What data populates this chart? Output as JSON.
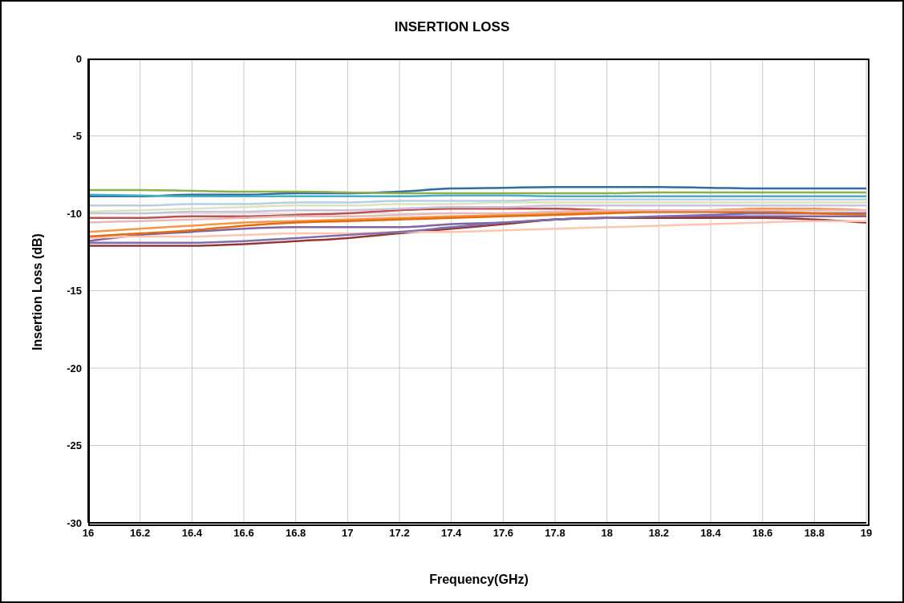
{
  "chart_data": {
    "type": "line",
    "title": "INSERTION LOSS",
    "xlabel": "Frequency(GHz)",
    "ylabel": "Insertion Loss (dB)",
    "x": [
      16,
      16.2,
      16.4,
      16.6,
      16.8,
      17,
      17.2,
      17.4,
      17.6,
      17.8,
      18,
      18.2,
      18.4,
      18.6,
      18.8,
      19
    ],
    "xlim": [
      16,
      19
    ],
    "xticks": [
      16,
      16.2,
      16.4,
      16.6,
      16.8,
      17,
      17.2,
      17.4,
      17.6,
      17.8,
      18,
      18.2,
      18.4,
      18.6,
      18.8,
      19
    ],
    "ylim": [
      -30,
      0
    ],
    "yticks": [
      -30,
      -25,
      -20,
      -15,
      -10,
      -5,
      0
    ],
    "grid": true,
    "marker": "none",
    "line_style": "solid",
    "series": [
      {
        "color": "#2e6ca4",
        "values": [
          -8.9,
          -8.9,
          -8.8,
          -8.8,
          -8.7,
          -8.7,
          -8.6,
          -8.4,
          -8.35,
          -8.3,
          -8.3,
          -8.3,
          -8.35,
          -8.4,
          -8.4,
          -8.4
        ]
      },
      {
        "color": "#8db04a",
        "values": [
          -8.5,
          -8.5,
          -8.55,
          -8.6,
          -8.6,
          -8.65,
          -8.7,
          -8.7,
          -8.7,
          -8.7,
          -8.7,
          -8.65,
          -8.65,
          -8.65,
          -8.65,
          -8.65
        ]
      },
      {
        "color": "#4bacc6",
        "values": [
          -8.8,
          -8.85,
          -8.9,
          -8.9,
          -8.9,
          -8.9,
          -8.9,
          -8.85,
          -8.85,
          -8.9,
          -8.9,
          -8.9,
          -8.9,
          -8.9,
          -8.9,
          -8.9
        ]
      },
      {
        "color": "#b9cde5",
        "values": [
          -9.5,
          -9.5,
          -9.4,
          -9.4,
          -9.3,
          -9.3,
          -9.2,
          -9.2,
          -9.2,
          -9.1,
          -9.1,
          -9.1,
          -9.1,
          -9.1,
          -9.1,
          -9.1
        ]
      },
      {
        "color": "#c0504d",
        "values": [
          -10.3,
          -10.3,
          -10.2,
          -10.2,
          -10.1,
          -10,
          -9.8,
          -9.7,
          -9.7,
          -9.7,
          -9.8,
          -9.9,
          -9.9,
          -10,
          -10,
          -10
        ]
      },
      {
        "color": "#f79646",
        "values": [
          -11.2,
          -11,
          -10.8,
          -10.6,
          -10.5,
          -10.4,
          -10.3,
          -10.2,
          -10.1,
          -10,
          -9.9,
          -9.9,
          -9.8,
          -9.7,
          -9.7,
          -9.8
        ]
      },
      {
        "color": "#8064a2",
        "values": [
          -11.8,
          -11.4,
          -11.2,
          -11,
          -10.9,
          -10.9,
          -10.9,
          -10.7,
          -10.6,
          -10.4,
          -10.3,
          -10.3,
          -10.2,
          -10.2,
          -10.2,
          -10.2
        ]
      },
      {
        "color": "#953735",
        "values": [
          -12.1,
          -12.1,
          -12.1,
          -12,
          -11.8,
          -11.6,
          -11.3,
          -11,
          -10.7,
          -10.4,
          -10.3,
          -10.3,
          -10.3,
          -10.3,
          -10.4,
          -10.6
        ]
      },
      {
        "color": "#fbc5b0",
        "values": [
          -11.6,
          -11.5,
          -11.5,
          -11.4,
          -11.3,
          -11.3,
          -11.2,
          -11.2,
          -11.1,
          -11,
          -10.9,
          -10.8,
          -10.7,
          -10.6,
          -10.5,
          -10.5
        ]
      },
      {
        "color": "#7f6fb0",
        "values": [
          -11.9,
          -11.9,
          -11.9,
          -11.8,
          -11.6,
          -11.4,
          -11.2,
          -10.9,
          -10.6,
          -10.4,
          -10.3,
          -10.2,
          -10.1,
          -10,
          -10,
          -10
        ]
      },
      {
        "color": "#e46c0a",
        "values": [
          -11.5,
          -11.3,
          -11.1,
          -10.8,
          -10.6,
          -10.5,
          -10.4,
          -10.3,
          -10.2,
          -10.1,
          -10,
          -9.9,
          -9.9,
          -9.9,
          -10,
          -10.1
        ]
      },
      {
        "color": "#ccc1da",
        "values": [
          -10,
          -10,
          -9.9,
          -9.9,
          -9.8,
          -9.8,
          -9.7,
          -9.6,
          -9.6,
          -9.5,
          -9.5,
          -9.5,
          -9.5,
          -9.5,
          -9.5,
          -9.5
        ]
      },
      {
        "color": "#d7e4bd",
        "values": [
          -9.9,
          -9.8,
          -9.7,
          -9.6,
          -9.5,
          -9.5,
          -9.4,
          -9.4,
          -9.3,
          -9.3,
          -9.3,
          -9.3,
          -9.3,
          -9.3,
          -9.3,
          -9.3
        ]
      },
      {
        "color": "#e6b9b8",
        "values": [
          -10.6,
          -10.5,
          -10.4,
          -10.3,
          -10.2,
          -10.2,
          -10.1,
          -10,
          -10,
          -9.9,
          -9.8,
          -9.8,
          -9.8,
          -9.8,
          -9.8,
          -9.8
        ]
      }
    ]
  }
}
